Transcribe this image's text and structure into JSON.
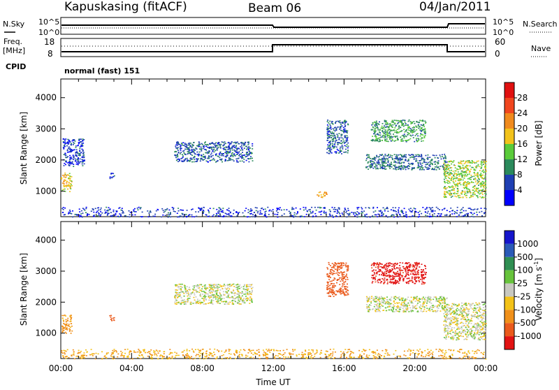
{
  "header": {
    "station": "Kapuskasing (fitACF)",
    "beam": "Beam 06",
    "date": "04/Jan/2011"
  },
  "strip_labels": {
    "nsky": "N.Sky",
    "nsearch": "N.Search",
    "freq_line1": "Freq.",
    "freq_line2": "[MHz]",
    "nave": "Nave",
    "cpid": "CPID",
    "cpid_value": "normal (fast) 151",
    "noise_tick_top": "10^5",
    "noise_tick_bottom": "10^0",
    "freq_tick_top": "18",
    "freq_tick_bottom": "8",
    "nave_tick_top": "60",
    "nave_tick_bottom": "0"
  },
  "colors": {
    "power_scale": [
      "#0000ff",
      "#1f3fb3",
      "#2b8a5c",
      "#5acb3a",
      "#f2c21b",
      "#f08a1d",
      "#f0461e",
      "#e01010"
    ],
    "velocity_scale": [
      "#1515cc",
      "#2a5ab7",
      "#2f8f52",
      "#67c33c",
      "#c8c8c0",
      "#f3c218",
      "#f0901a",
      "#ea5a1c",
      "#e21313"
    ]
  },
  "chart_data": [
    {
      "type": "heatmap",
      "name": "power",
      "xlabel": "Time UT",
      "ylabel": "Slant Range [km]",
      "x_ticks": [
        "00:00",
        "04:00",
        "08:00",
        "12:00",
        "16:00",
        "20:00",
        "00:00"
      ],
      "y_ticks": [
        "1000",
        "2000",
        "3000",
        "4000"
      ],
      "xlim_hours": [
        0,
        24
      ],
      "ylim_km": [
        180,
        4600
      ],
      "colorbar": {
        "label": "Power [dB]",
        "ticks": [
          "4",
          "8",
          "12",
          "16",
          "20",
          "24",
          "28"
        ],
        "range": [
          0,
          30
        ]
      },
      "echo_regions": [
        {
          "t_start": 0.0,
          "t_end": 0.6,
          "r_min": 1000,
          "r_max": 1600,
          "level": 18
        },
        {
          "t_start": 0.1,
          "t_end": 1.3,
          "r_min": 1800,
          "r_max": 2700,
          "level": 5
        },
        {
          "t_start": 0.0,
          "t_end": 24.0,
          "r_min": 180,
          "r_max": 500,
          "level": 5
        },
        {
          "t_start": 2.7,
          "t_end": 3.0,
          "r_min": 1400,
          "r_max": 1600,
          "level": 5
        },
        {
          "t_start": 6.4,
          "t_end": 10.8,
          "r_min": 1950,
          "r_max": 2600,
          "level": 7
        },
        {
          "t_start": 14.4,
          "t_end": 15.0,
          "r_min": 800,
          "r_max": 1000,
          "level": 20
        },
        {
          "t_start": 15.0,
          "t_end": 16.2,
          "r_min": 2200,
          "r_max": 3300,
          "level": 7
        },
        {
          "t_start": 17.5,
          "t_end": 20.6,
          "r_min": 2600,
          "r_max": 3300,
          "level": 11
        },
        {
          "t_start": 17.2,
          "t_end": 21.8,
          "r_min": 1700,
          "r_max": 2200,
          "level": 8
        },
        {
          "t_start": 21.6,
          "t_end": 24.0,
          "r_min": 800,
          "r_max": 2000,
          "level": 15
        }
      ]
    },
    {
      "type": "heatmap",
      "name": "velocity",
      "xlabel": "Time UT",
      "ylabel": "Slant Range [km]",
      "x_ticks": [
        "00:00",
        "04:00",
        "08:00",
        "12:00",
        "16:00",
        "20:00",
        "00:00"
      ],
      "y_ticks": [
        "1000",
        "2000",
        "3000",
        "4000"
      ],
      "xlim_hours": [
        0,
        24
      ],
      "ylim_km": [
        180,
        4600
      ],
      "colorbar": {
        "label": "Velocity [m s^-1]",
        "ticks": [
          "1000",
          "500",
          "100",
          "25",
          "-25",
          "-100",
          "-500",
          "-1000"
        ],
        "range": [
          -1200,
          1200
        ]
      },
      "echo_regions": [
        {
          "t_start": 0.0,
          "t_end": 0.6,
          "r_min": 1000,
          "r_max": 1600,
          "velocity": -150
        },
        {
          "t_start": 0.0,
          "t_end": 24.0,
          "r_min": 180,
          "r_max": 500,
          "velocity": -100
        },
        {
          "t_start": 2.7,
          "t_end": 3.0,
          "r_min": 1400,
          "r_max": 1600,
          "velocity": -700
        },
        {
          "t_start": 6.4,
          "t_end": 10.8,
          "r_min": 1950,
          "r_max": 2600,
          "velocity": 0
        },
        {
          "t_start": 15.0,
          "t_end": 16.2,
          "r_min": 2200,
          "r_max": 3300,
          "velocity": -600
        },
        {
          "t_start": 17.5,
          "t_end": 20.6,
          "r_min": 2600,
          "r_max": 3300,
          "velocity": -800
        },
        {
          "t_start": 17.2,
          "t_end": 21.8,
          "r_min": 1700,
          "r_max": 2200,
          "velocity": 0
        },
        {
          "t_start": 21.6,
          "t_end": 24.0,
          "r_min": 800,
          "r_max": 2000,
          "velocity": 0
        }
      ]
    }
  ]
}
